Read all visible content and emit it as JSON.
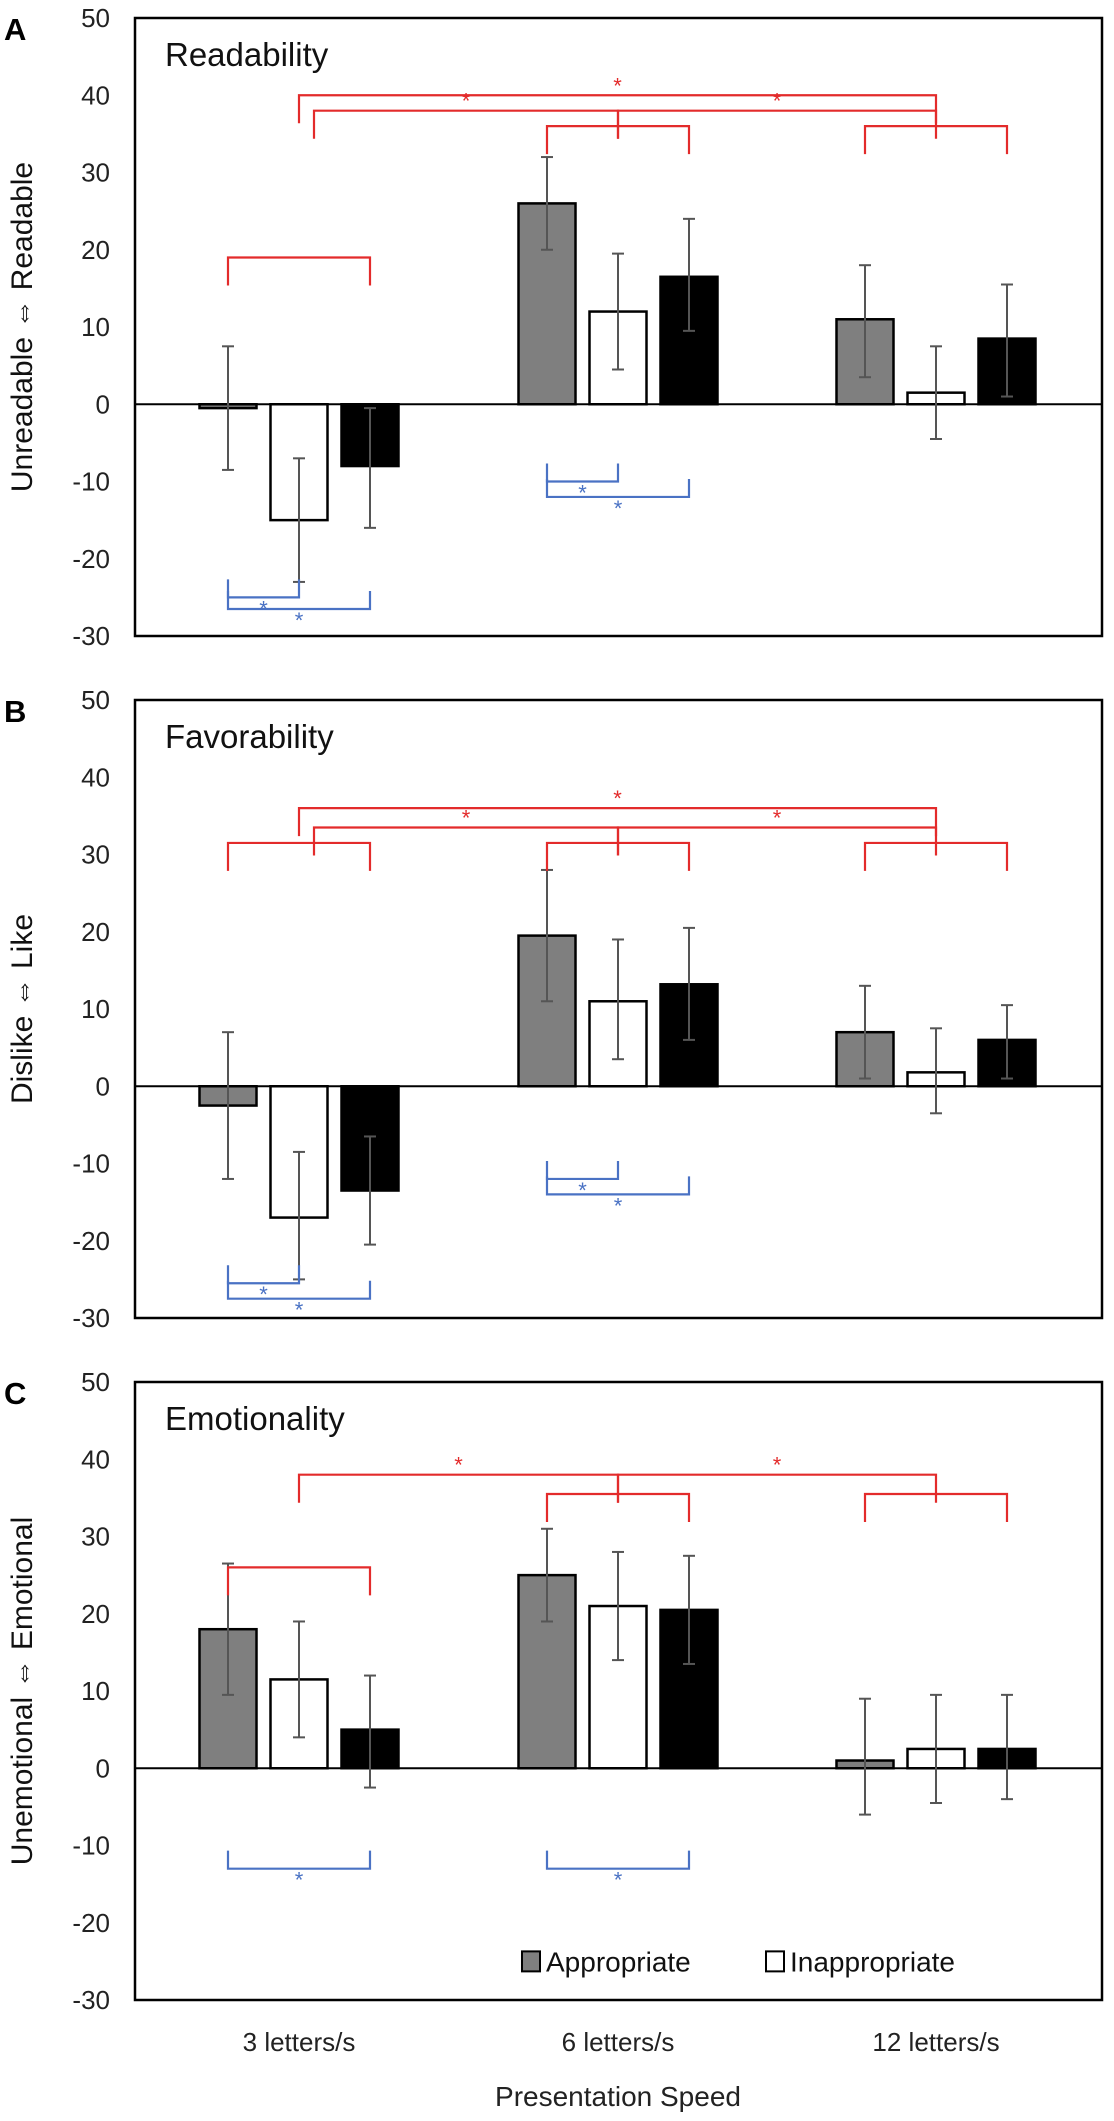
{
  "chart_data": [
    {
      "type": "bar",
      "panel_letter": "A",
      "title": "Readability",
      "ylabel": "Unreadable ⇔ Readable",
      "ylim": [
        -30,
        50
      ],
      "yticks": [
        50,
        40,
        30,
        20,
        10,
        0,
        -10,
        -20,
        -30
      ],
      "categories": [
        "3 letters/s",
        "6 letters/s",
        "12 letters/s"
      ],
      "series": [
        {
          "name": "Appropriate",
          "color": "#7f7f7f",
          "values": [
            -0.5,
            26,
            11
          ],
          "err_low": [
            -8.5,
            20,
            3.5
          ],
          "err_high": [
            7.5,
            32,
            18
          ]
        },
        {
          "name": "Inappropriate",
          "color": "#ffffff",
          "values": [
            -15,
            12,
            1.5
          ],
          "err_low": [
            -23,
            4.5,
            -4.5
          ],
          "err_high": [
            -7,
            19.5,
            7.5
          ]
        },
        {
          "name": "",
          "color": "#000000",
          "values": [
            -8,
            16.5,
            8.5
          ],
          "err_low": [
            -16,
            9.5,
            1
          ],
          "err_high": [
            -0.5,
            24,
            15.5
          ]
        }
      ],
      "red_brackets": [
        {
          "level": 19,
          "from": [
            0,
            0
          ],
          "to": [
            0,
            2
          ],
          "star": false
        },
        {
          "level": 36,
          "from": [
            1,
            0
          ],
          "to": [
            1,
            2
          ],
          "star": false
        },
        {
          "level": 36,
          "from": [
            2,
            0
          ],
          "to": [
            2,
            2
          ],
          "star": false
        },
        {
          "level": 38,
          "from": [
            0,
            "c+0.2"
          ],
          "to": [
            1,
            "c"
          ],
          "star": true,
          "star_side": "left"
        },
        {
          "level": 38,
          "from": [
            1,
            "c"
          ],
          "to": [
            2,
            "c"
          ],
          "star": true,
          "star_side": "right"
        },
        {
          "level": 40,
          "from": [
            0,
            "c"
          ],
          "to": [
            2,
            "c"
          ],
          "star": true,
          "star_side": "mid"
        }
      ],
      "blue_brackets": [
        {
          "level": -25,
          "from": [
            0,
            0
          ],
          "to": [
            0,
            1
          ],
          "star": true
        },
        {
          "level": -26.5,
          "from": [
            0,
            0
          ],
          "to": [
            0,
            2
          ],
          "star": true
        },
        {
          "level": -10,
          "from": [
            1,
            0
          ],
          "to": [
            1,
            1
          ],
          "star": true
        },
        {
          "level": -12,
          "from": [
            1,
            0
          ],
          "to": [
            1,
            2
          ],
          "star": true
        }
      ],
      "star_symbol": "*"
    },
    {
      "type": "bar",
      "panel_letter": "B",
      "title": "Favorability",
      "ylabel": "Dislike ⇔ Like",
      "ylim": [
        -30,
        50
      ],
      "yticks": [
        50,
        40,
        30,
        20,
        10,
        0,
        -10,
        -20,
        -30
      ],
      "categories": [
        "3 letters/s",
        "6 letters/s",
        "12 letters/s"
      ],
      "series": [
        {
          "name": "Appropriate",
          "color": "#7f7f7f",
          "values": [
            -2.5,
            19.5,
            7
          ],
          "err_low": [
            -12,
            11,
            1
          ],
          "err_high": [
            7,
            28,
            13
          ]
        },
        {
          "name": "Inappropriate",
          "color": "#ffffff",
          "values": [
            -17,
            11,
            1.8
          ],
          "err_low": [
            -25,
            3.5,
            -3.5
          ],
          "err_high": [
            -8.5,
            19,
            7.5
          ]
        },
        {
          "name": "",
          "color": "#000000",
          "values": [
            -13.5,
            13.2,
            6
          ],
          "err_low": [
            -20.5,
            6,
            1
          ],
          "err_high": [
            -6.5,
            20.5,
            10.5
          ]
        }
      ],
      "red_brackets": [
        {
          "level": 31.5,
          "from": [
            0,
            0
          ],
          "to": [
            0,
            2
          ],
          "star": false
        },
        {
          "level": 31.5,
          "from": [
            1,
            0
          ],
          "to": [
            1,
            2
          ],
          "star": false
        },
        {
          "level": 31.5,
          "from": [
            2,
            0
          ],
          "to": [
            2,
            2
          ],
          "star": false
        },
        {
          "level": 33.5,
          "from": [
            0,
            "c+0.2"
          ],
          "to": [
            1,
            "c"
          ],
          "star": true,
          "star_side": "left"
        },
        {
          "level": 33.5,
          "from": [
            1,
            "c"
          ],
          "to": [
            2,
            "c"
          ],
          "star": true,
          "star_side": "right"
        },
        {
          "level": 36,
          "from": [
            0,
            "c"
          ],
          "to": [
            2,
            "c"
          ],
          "star": true,
          "star_side": "mid"
        }
      ],
      "blue_brackets": [
        {
          "level": -25.5,
          "from": [
            0,
            0
          ],
          "to": [
            0,
            1
          ],
          "star": true
        },
        {
          "level": -27.5,
          "from": [
            0,
            0
          ],
          "to": [
            0,
            2
          ],
          "star": true
        },
        {
          "level": -12,
          "from": [
            1,
            0
          ],
          "to": [
            1,
            1
          ],
          "star": true
        },
        {
          "level": -14,
          "from": [
            1,
            0
          ],
          "to": [
            1,
            2
          ],
          "star": true
        }
      ],
      "star_symbol": "*"
    },
    {
      "type": "bar",
      "panel_letter": "C",
      "title": "Emotionality",
      "ylabel": "Unemotional ⇔ Emotional",
      "ylim": [
        -30,
        50
      ],
      "yticks": [
        50,
        40,
        30,
        20,
        10,
        0,
        -10,
        -20,
        -30
      ],
      "categories": [
        "3 letters/s",
        "6 letters/s",
        "12 letters/s"
      ],
      "xlabel": "Presentation Speed",
      "series": [
        {
          "name": "Appropriate",
          "color": "#7f7f7f",
          "values": [
            18,
            25,
            1
          ],
          "err_low": [
            9.5,
            19,
            -6
          ],
          "err_high": [
            26.5,
            31,
            9
          ]
        },
        {
          "name": "Inappropriate",
          "color": "#ffffff",
          "values": [
            11.5,
            21,
            2.5
          ],
          "err_low": [
            4,
            14,
            -4.5
          ],
          "err_high": [
            19,
            28,
            9.5
          ]
        },
        {
          "name": "",
          "color": "#000000",
          "values": [
            5,
            20.5,
            2.5
          ],
          "err_low": [
            -2.5,
            13.5,
            -4
          ],
          "err_high": [
            12,
            27.5,
            9.5
          ]
        }
      ],
      "red_brackets": [
        {
          "level": 26,
          "from": [
            0,
            0
          ],
          "to": [
            0,
            2
          ],
          "star": false
        },
        {
          "level": 35.5,
          "from": [
            1,
            0
          ],
          "to": [
            1,
            2
          ],
          "star": false
        },
        {
          "level": 35.5,
          "from": [
            2,
            0
          ],
          "to": [
            2,
            2
          ],
          "star": false
        },
        {
          "level": 38,
          "from": [
            0,
            "c"
          ],
          "to": [
            1,
            "c"
          ],
          "star": true,
          "star_side": "left"
        },
        {
          "level": 38,
          "from": [
            1,
            "c"
          ],
          "to": [
            2,
            "c"
          ],
          "star": true,
          "star_side": "right"
        }
      ],
      "blue_brackets": [
        {
          "level": -13,
          "from": [
            0,
            0
          ],
          "to": [
            0,
            2
          ],
          "star": true
        },
        {
          "level": -13,
          "from": [
            1,
            0
          ],
          "to": [
            1,
            2
          ],
          "star": true
        }
      ],
      "star_symbol": "*",
      "legend": [
        "Appropriate",
        "Inappropriate"
      ],
      "legend_position": "bottom-right"
    }
  ],
  "colors": {
    "appropriate": "#7f7f7f",
    "inappropriate": "#ffffff",
    "third": "#000000",
    "significance_between": "#e32b2b",
    "significance_within": "#4a72c4",
    "error_bar": "#555555"
  }
}
